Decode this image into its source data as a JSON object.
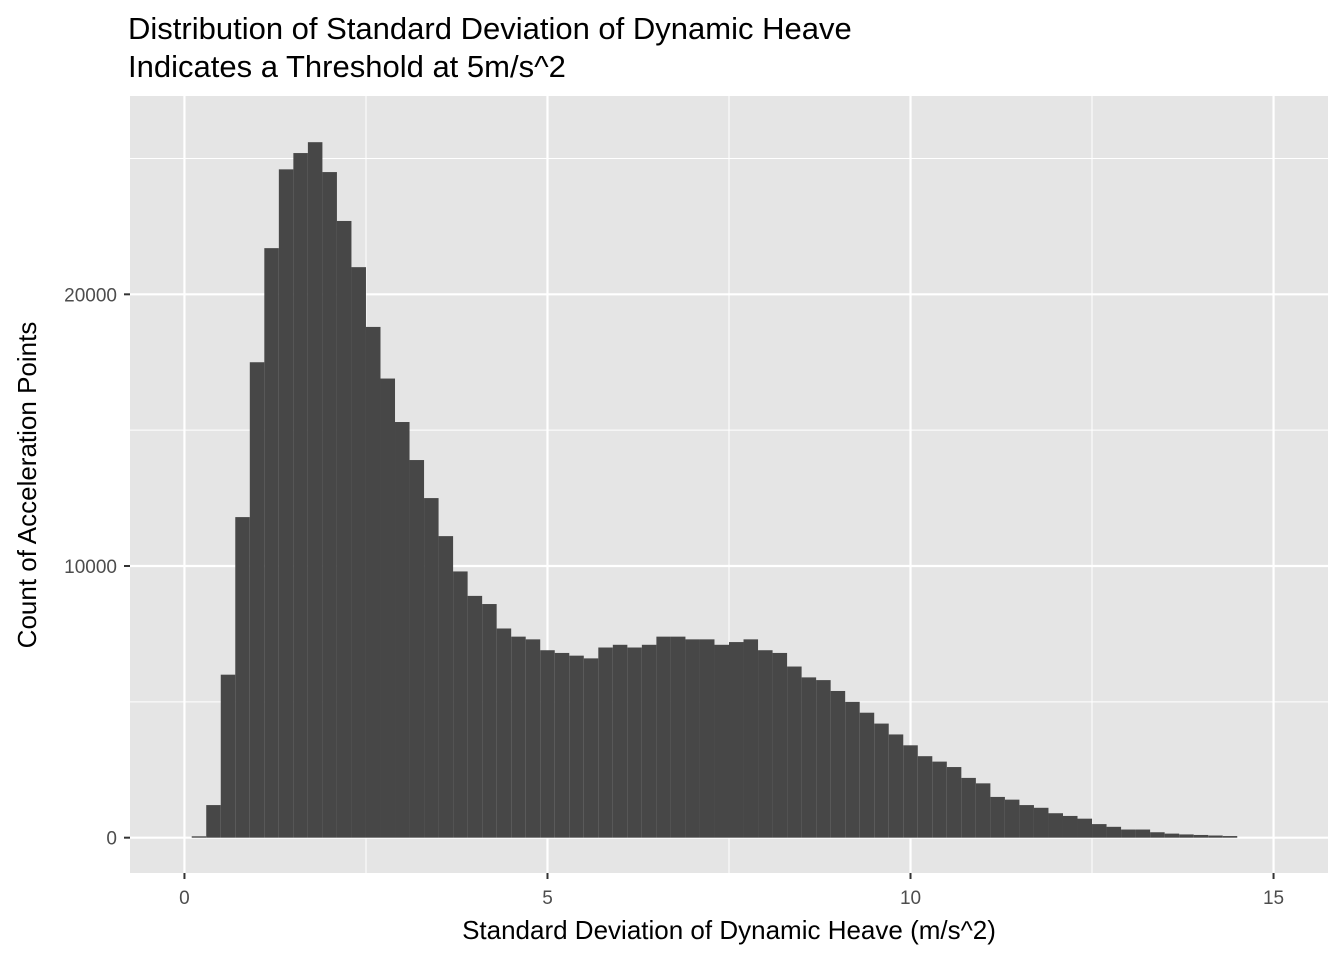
{
  "chart_data": {
    "type": "bar",
    "title_lines": [
      "Distribution of Standard Deviation of Dynamic Heave",
      "Indicates a Threshold at 5m/s^2"
    ],
    "xlabel": "Standard Deviation of Dynamic Heave (m/s^2)",
    "ylabel": "Count of Acceleration Points",
    "x_ticks": [
      0,
      5,
      10,
      15
    ],
    "y_ticks": [
      0,
      10000,
      20000
    ],
    "x_tick_labels": [
      "0",
      "5",
      "10",
      "15"
    ],
    "y_tick_labels": [
      "0",
      "10000",
      "20000"
    ],
    "xlim": [
      -0.75,
      15.75
    ],
    "ylim": [
      -1300,
      27300
    ],
    "bin_width": 0.2,
    "bin_start": 0.1,
    "counts": [
      50,
      1200,
      6000,
      11800,
      17500,
      21700,
      24600,
      25200,
      25600,
      24500,
      22700,
      21000,
      18800,
      16900,
      15300,
      13900,
      12500,
      11100,
      9800,
      8900,
      8600,
      7700,
      7400,
      7300,
      6900,
      6800,
      6700,
      6600,
      7000,
      7100,
      7000,
      7100,
      7400,
      7400,
      7300,
      7300,
      7100,
      7200,
      7300,
      6900,
      6800,
      6300,
      5900,
      5800,
      5400,
      5000,
      4600,
      4200,
      3800,
      3400,
      3000,
      2800,
      2600,
      2200,
      2000,
      1500,
      1400,
      1200,
      1100,
      900,
      800,
      700,
      500,
      400,
      300,
      300,
      200,
      150,
      120,
      100,
      80,
      60
    ],
    "bar_color": "#474747",
    "panel_background": "#e5e5e5",
    "grid": true,
    "grid_color": "#ffffff"
  }
}
